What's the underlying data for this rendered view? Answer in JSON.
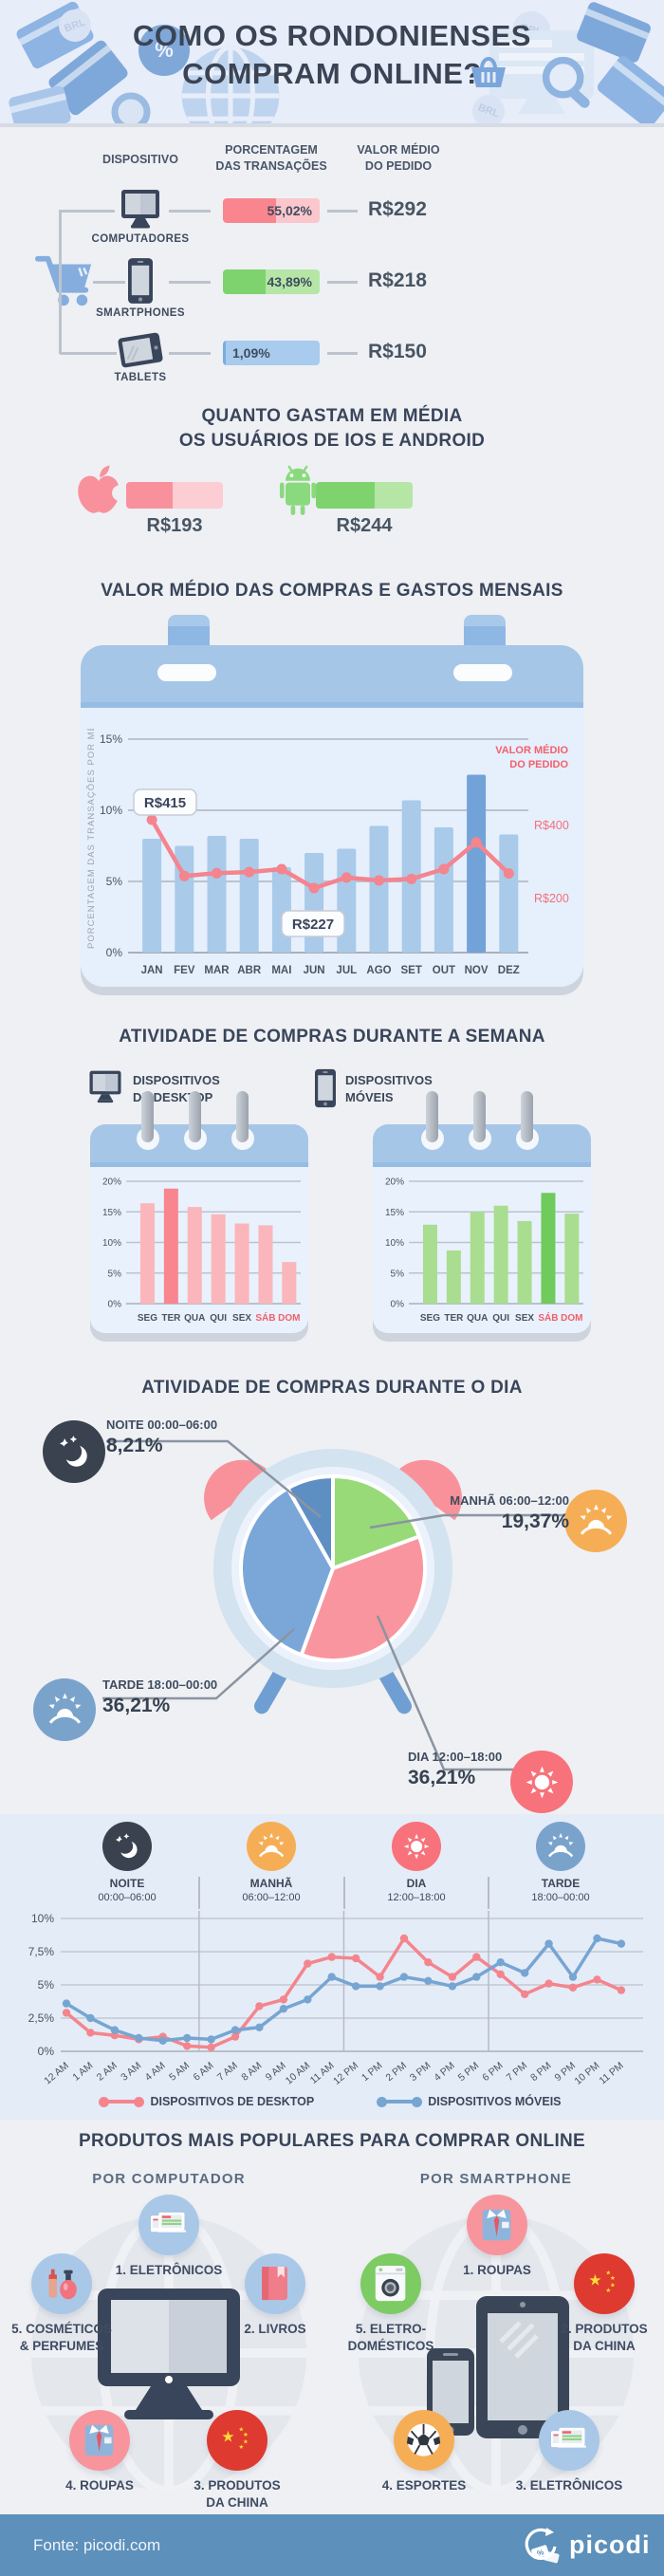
{
  "header": {
    "title_line1": "COMO OS RONDONIENSES",
    "title_line2": "COMPRAM ONLINE?"
  },
  "devices": {
    "col_device": "DISPOSITIVO",
    "col_share_l1": "PORCENTAGEM",
    "col_share_l2": "DAS TRANSAÇÕES",
    "col_value_l1": "VALOR MÉDIO",
    "col_value_l2": "DO PEDIDO"
  },
  "os_spend": {
    "title_line1": "QUANTO GASTAM EM MÉDIA",
    "title_line2": "OS USUÁRIOS DE IOS E ANDROID"
  },
  "sections": {
    "weekly_title": "ATIVIDADE DE COMPRAS DURANTE A SEMANA",
    "daily_title": "ATIVIDADE DE COMPRAS DURANTE O DIA"
  },
  "products": {
    "title": "PRODUTOS MAIS POPULARES PARA COMPRAR ONLINE",
    "computer": {
      "subtitle": "POR COMPUTADOR",
      "items": [
        {
          "lines": [
            "1. ELETRÔNICOS"
          ]
        },
        {
          "lines": [
            "2. LIVROS"
          ]
        },
        {
          "lines": [
            "3. PRODUTOS",
            "DA CHINA"
          ]
        },
        {
          "lines": [
            "4. ROUPAS"
          ]
        },
        {
          "lines": [
            "5. COSMÉTICOS",
            "& PERFUMES"
          ]
        }
      ]
    },
    "smartphone": {
      "subtitle": "POR SMARTPHONE",
      "items": [
        {
          "lines": [
            "1. ROUPAS"
          ]
        },
        {
          "lines": [
            "2. PRODUTOS",
            "DA CHINA"
          ]
        },
        {
          "lines": [
            "3. ELETRÔNICOS"
          ]
        },
        {
          "lines": [
            "4. ESPORTES"
          ]
        },
        {
          "lines": [
            "5. ELETRO-",
            "DOMÉSTICOS"
          ]
        }
      ]
    }
  },
  "footer": {
    "source": "Fonte: picodi.com",
    "brand": "picodi"
  },
  "chart_data": [
    {
      "id": "device_share",
      "type": "bar",
      "orientation": "horizontal",
      "categories": [
        "COMPUTADORES",
        "SMARTPHONES",
        "TABLETS"
      ],
      "values": [
        55.02,
        43.89,
        1.09
      ],
      "labels": [
        "55,02%",
        "43,89%",
        "1,09%"
      ],
      "avg_order_values": [
        "R$292",
        "R$218",
        "R$150"
      ],
      "colors": [
        "#f9868f",
        "#7ed36f",
        "#79aede"
      ],
      "bg_colors": [
        "#fbc7cc",
        "#b5e6a6",
        "#a8cbee"
      ]
    },
    {
      "id": "os_spend",
      "type": "bar",
      "categories": [
        "iOS",
        "Android"
      ],
      "values": [
        193,
        244
      ],
      "scale_max": 400,
      "labels": [
        "R$193",
        "R$244"
      ],
      "colors": [
        "#f8919b",
        "#7ed36f"
      ],
      "bg_colors": [
        "#fccdd2",
        "#b5e6a6"
      ]
    },
    {
      "id": "monthly_value_and_share",
      "type": "bar+line",
      "title": "VALOR MÉDIO DAS COMPRAS E GASTOS MENSAIS",
      "categories": [
        "JAN",
        "FEV",
        "MAR",
        "ABR",
        "MAI",
        "JUN",
        "JUL",
        "AGO",
        "SET",
        "OUT",
        "NOV",
        "DEZ"
      ],
      "bar_series": {
        "name": "PORCENTAGEM DAS TRANSAÇÕES POR MÊS",
        "unit": "%",
        "values": [
          8.0,
          7.5,
          8.2,
          8.0,
          6.0,
          7.0,
          7.3,
          8.9,
          10.7,
          8.8,
          12.5,
          8.3
        ],
        "highlight_index": 10
      },
      "line_series": {
        "name": "VALOR MÉDIO DO PEDIDO",
        "unit": "R$",
        "values": [
          415,
          260,
          268,
          271,
          279,
          227,
          256,
          248,
          252,
          279,
          353,
          267
        ],
        "callouts": [
          {
            "index": 0,
            "text": "R$415"
          },
          {
            "index": 5,
            "text": "R$227"
          }
        ]
      },
      "left_axis": {
        "ticks": [
          "0%",
          "5%",
          "10%",
          "15%"
        ],
        "min": 0,
        "max": 15
      },
      "right_axis": {
        "ticks": [
          "R$400",
          "R$200"
        ],
        "label_lines": [
          "VALOR MÉDIO",
          "DO PEDIDO"
        ]
      }
    },
    {
      "id": "week_desktop",
      "type": "bar",
      "title": "DISPOSITIVOS DE DESKTOP",
      "title_lines": [
        "DISPOSITIVOS",
        "DE DESKTOP"
      ],
      "categories": [
        "SEG",
        "TER",
        "QUA",
        "QUI",
        "SEX",
        "SÁB",
        "DOM"
      ],
      "weekend_indexes": [
        5,
        6
      ],
      "values": [
        16.4,
        18.8,
        15.8,
        14.6,
        13.1,
        12.8,
        6.8
      ],
      "highlight_index": 1,
      "colors": {
        "base": "#fbb6bb",
        "highlight": "#f9858f"
      },
      "ylim": [
        0,
        20
      ],
      "y_ticks": [
        "0%",
        "5%",
        "10%",
        "15%",
        "20%"
      ]
    },
    {
      "id": "week_mobile",
      "type": "bar",
      "title": "DISPOSITIVOS MÓVEIS",
      "title_lines": [
        "DISPOSITIVOS",
        "MÓVEIS"
      ],
      "categories": [
        "SEG",
        "TER",
        "QUA",
        "QUI",
        "SEX",
        "SÁB",
        "DOM"
      ],
      "weekend_indexes": [
        5,
        6
      ],
      "values": [
        12.9,
        8.7,
        15.0,
        16.0,
        13.5,
        18.1,
        14.7
      ],
      "highlight_index": 5,
      "colors": {
        "base": "#a9dd90",
        "highlight": "#6fcb5c"
      },
      "ylim": [
        0,
        20
      ],
      "y_ticks": [
        "0%",
        "5%",
        "10%",
        "15%",
        "20%"
      ]
    },
    {
      "id": "daily_pie",
      "type": "pie",
      "slices": [
        {
          "label": "NOITE 00:00–06:00",
          "value": 8.21,
          "text": "8,21%",
          "color": "#5e8fc3"
        },
        {
          "label": "MANHÃ 06:00–12:00",
          "value": 19.37,
          "text": "19,37%",
          "color": "#97da77"
        },
        {
          "label": "DIA 12:00–18:00",
          "value": 36.21,
          "text": "36,21%",
          "color": "#f9959e"
        },
        {
          "label": "TARDE 18:00–00:00",
          "value": 36.21,
          "text": "36,21%",
          "color": "#7aa7d8"
        }
      ]
    },
    {
      "id": "hourly_activity",
      "type": "line",
      "x": [
        "12 AM",
        "1 AM",
        "2 AM",
        "3 AM",
        "4 AM",
        "5 AM",
        "6 AM",
        "7 AM",
        "8 AM",
        "9 AM",
        "10 AM",
        "11 AM",
        "12 PM",
        "1 PM",
        "2 PM",
        "3 PM",
        "4 PM",
        "5 PM",
        "6 PM",
        "7 PM",
        "8 PM",
        "9 PM",
        "10 PM",
        "11 PM"
      ],
      "series": [
        {
          "name": "DISPOSITIVOS DE DESKTOP",
          "color": "#f4858d",
          "values": [
            2.9,
            1.4,
            1.2,
            0.9,
            1.1,
            0.4,
            0.3,
            1.1,
            3.4,
            3.9,
            6.6,
            7.1,
            7.0,
            5.6,
            8.5,
            6.7,
            5.6,
            7.1,
            5.8,
            4.3,
            5.1,
            4.8,
            5.4,
            4.6
          ]
        },
        {
          "name": "DISPOSITIVOS MÓVEIS",
          "color": "#76a5d2",
          "values": [
            3.6,
            2.5,
            1.6,
            1.0,
            0.8,
            1.0,
            0.9,
            1.6,
            1.8,
            3.2,
            3.9,
            5.6,
            4.9,
            4.9,
            5.6,
            5.3,
            4.9,
            5.6,
            6.7,
            5.9,
            8.1,
            5.6,
            8.5,
            8.1
          ]
        }
      ],
      "y_ticks": [
        "0%",
        "2,5%",
        "5%",
        "7,5%",
        "10%"
      ],
      "ylim": [
        0,
        10
      ],
      "period_labels": [
        {
          "name": "NOITE",
          "time": "00:00–06:00"
        },
        {
          "name": "MANHÃ",
          "time": "06:00–12:00"
        },
        {
          "name": "DIA",
          "time": "12:00–18:00"
        },
        {
          "name": "TARDE",
          "time": "18:00–00:00"
        }
      ]
    }
  ]
}
